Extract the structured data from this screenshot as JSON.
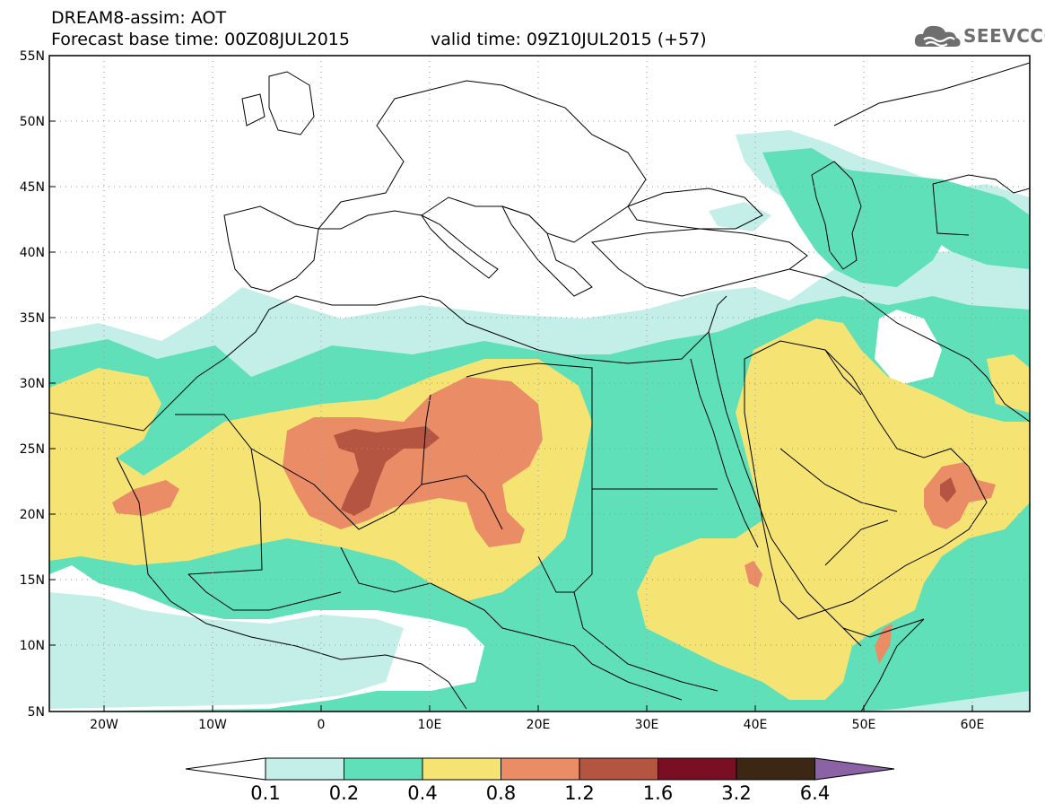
{
  "header": {
    "title": "DREAM8-assim: AOT",
    "base_time": "Forecast base time: 00Z08JUL2015",
    "valid_time": "valid time: 09Z10JUL2015 (+57)"
  },
  "logo": {
    "text": "SEEVCCC",
    "icon": "cloud-icon",
    "color": "#6e6e6e"
  },
  "map": {
    "lat_labels": [
      "55N",
      "50N",
      "45N",
      "40N",
      "35N",
      "30N",
      "25N",
      "20N",
      "15N",
      "10N",
      "5N"
    ],
    "lon_labels": [
      "20W",
      "10W",
      "0",
      "10E",
      "20E",
      "30E",
      "40E",
      "50E",
      "60E"
    ],
    "region": "North Africa, Europe, Middle East"
  },
  "colorbar": {
    "labels": [
      "0.1",
      "0.2",
      "0.4",
      "0.8",
      "1.2",
      "1.6",
      "3.2",
      "6.4"
    ],
    "colors": [
      "#c4efe9",
      "#5fe0b8",
      "#f5e473",
      "#ea8c66",
      "#b45541",
      "#7a0f24",
      "#3c2614",
      "#8c62a7"
    ]
  }
}
